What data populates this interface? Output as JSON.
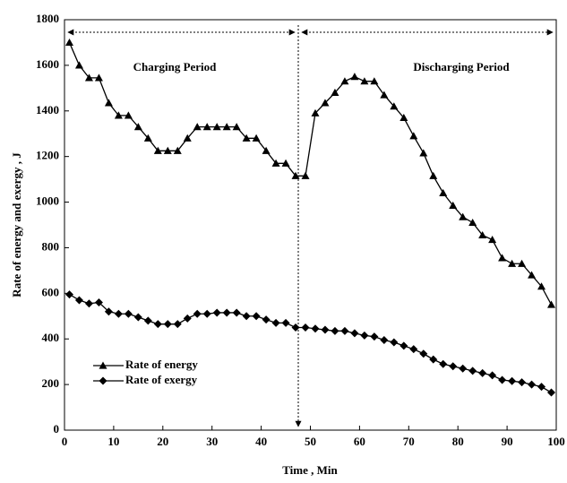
{
  "chart_data": {
    "type": "line",
    "x_label": "Time , Min",
    "y_label": "Rate of energy and exergy , J",
    "annotations": [
      "Charging Period",
      "Discharging Period"
    ],
    "x": [
      1,
      3,
      5,
      7,
      9,
      11,
      13,
      15,
      17,
      19,
      21,
      23,
      25,
      27,
      29,
      31,
      33,
      35,
      37,
      39,
      41,
      43,
      45,
      47,
      49,
      51,
      53,
      55,
      57,
      59,
      61,
      63,
      65,
      67,
      69,
      71,
      73,
      75,
      77,
      79,
      81,
      83,
      85,
      87,
      89,
      91,
      93,
      95,
      97,
      99
    ],
    "series": [
      {
        "name": "Rate of  energy",
        "color": "#000000",
        "marker": "triangle",
        "values": [
          1700,
          1600,
          1545,
          1545,
          1435,
          1380,
          1380,
          1330,
          1280,
          1225,
          1225,
          1225,
          1280,
          1330,
          1330,
          1330,
          1330,
          1330,
          1280,
          1280,
          1225,
          1170,
          1170,
          1115,
          1115,
          1390,
          1435,
          1480,
          1530,
          1550,
          1530,
          1530,
          1470,
          1420,
          1370,
          1290,
          1215,
          1115,
          1040,
          985,
          935,
          910,
          855,
          835,
          755,
          730,
          730,
          680,
          630,
          550
        ]
      },
      {
        "name": "Rate of  exergy",
        "color": "#000000",
        "marker": "diamond",
        "values": [
          595,
          570,
          555,
          560,
          520,
          510,
          510,
          495,
          480,
          465,
          465,
          465,
          490,
          510,
          510,
          515,
          515,
          515,
          500,
          500,
          485,
          470,
          470,
          450,
          450,
          445,
          440,
          435,
          435,
          425,
          415,
          410,
          395,
          385,
          370,
          355,
          335,
          310,
          290,
          280,
          270,
          260,
          250,
          240,
          220,
          215,
          210,
          200,
          190,
          165
        ]
      }
    ],
    "xlim": [
      0,
      100
    ],
    "xticks": [
      0,
      10,
      20,
      30,
      40,
      50,
      60,
      70,
      80,
      90,
      100
    ],
    "ylim": [
      0,
      1800
    ],
    "yticks": [
      0,
      200,
      400,
      600,
      800,
      1000,
      1200,
      1400,
      1600,
      1800
    ]
  }
}
